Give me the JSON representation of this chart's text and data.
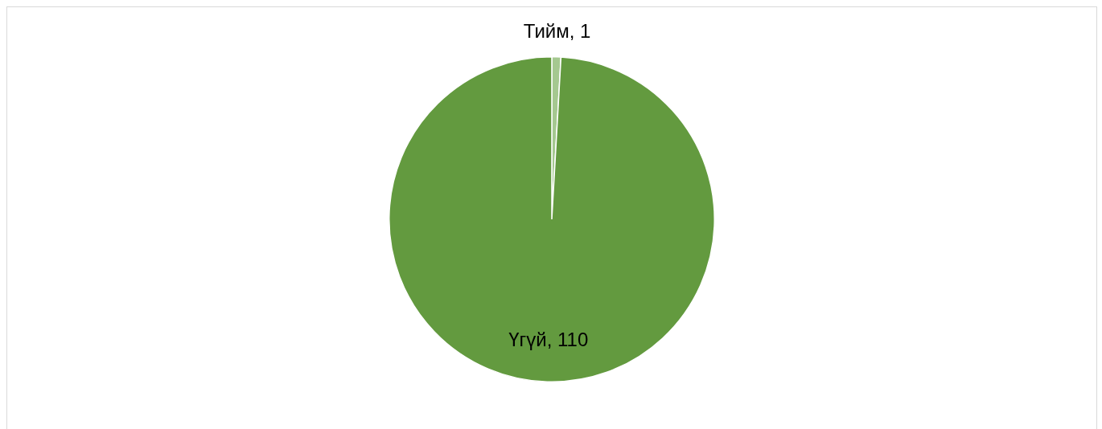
{
  "chart_data": {
    "type": "pie",
    "categories": [
      null,
      null
    ],
    "values": [
      1,
      110
    ],
    "value_labels": [
      "Тийм, 1",
      "Үгүй, 110"
    ],
    "colors": [
      "#a5c890",
      "#639a3f"
    ]
  }
}
